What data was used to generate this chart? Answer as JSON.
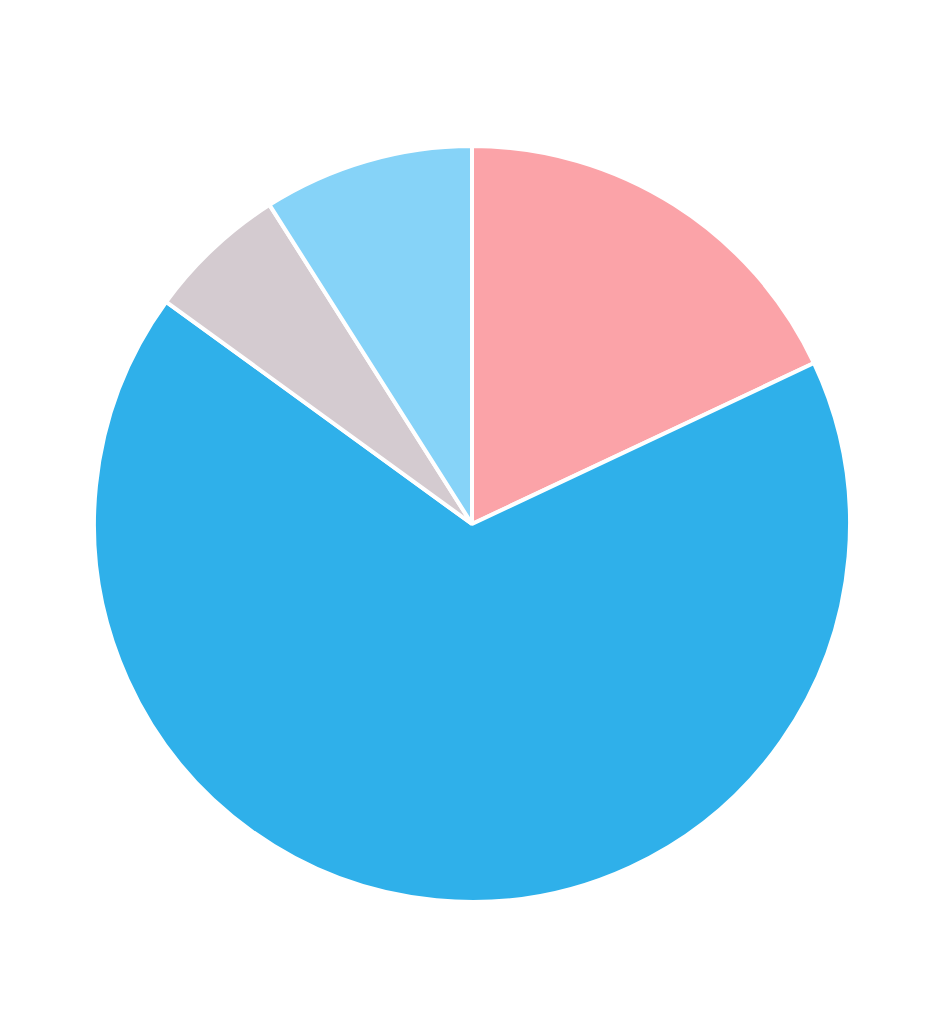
{
  "chart_data": {
    "type": "pie",
    "categories": [
      null,
      null,
      null,
      null
    ],
    "values": [
      18,
      67,
      6,
      9
    ],
    "colors": [
      "#fba3a8",
      "#2fb0ea",
      "#d4cbd0",
      "#86d3f8"
    ]
  }
}
